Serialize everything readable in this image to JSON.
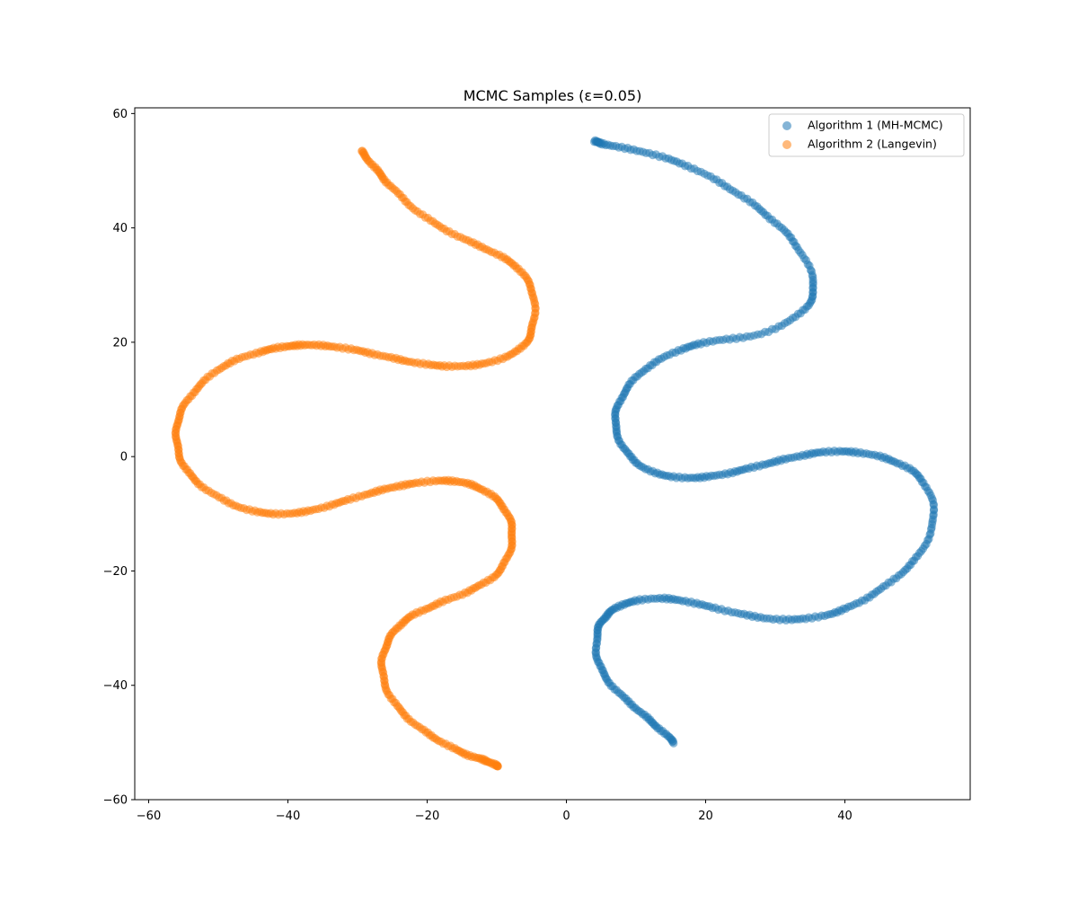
{
  "chart_data": {
    "type": "scatter",
    "title": "MCMC Samples (ε=0.05)",
    "xlabel": "",
    "ylabel": "",
    "xlim": [
      -62,
      58
    ],
    "ylim": [
      -60,
      61
    ],
    "xticks": [
      -60,
      -40,
      -20,
      0,
      20,
      40
    ],
    "yticks": [
      -60,
      -40,
      -20,
      0,
      20,
      40,
      60
    ],
    "xtick_labels": [
      "−60",
      "−40",
      "−20",
      "0",
      "20",
      "40"
    ],
    "ytick_labels": [
      "−60",
      "−40",
      "−20",
      "0",
      "20",
      "40",
      "60"
    ],
    "grid": false,
    "legend_position": "top-right",
    "series": [
      {
        "name": "Algorithm 1 (MH-MCMC)",
        "color": "#1f77b4",
        "path_points": [
          [
            4.0,
            55.2
          ],
          [
            6.0,
            54.5
          ],
          [
            12.0,
            53.0
          ],
          [
            18.0,
            50.5
          ],
          [
            24.0,
            46.5
          ],
          [
            29.0,
            42.0
          ],
          [
            33.0,
            37.0
          ],
          [
            35.5,
            30.5
          ],
          [
            34.0,
            25.5
          ],
          [
            28.0,
            21.5
          ],
          [
            21.0,
            20.2
          ],
          [
            16.0,
            18.5
          ],
          [
            11.0,
            15.0
          ],
          [
            8.0,
            10.5
          ],
          [
            7.0,
            5.8
          ],
          [
            8.5,
            1.0
          ],
          [
            12.0,
            -2.5
          ],
          [
            17.0,
            -3.7
          ],
          [
            22.0,
            -3.2
          ],
          [
            27.0,
            -1.8
          ],
          [
            32.0,
            -0.3
          ],
          [
            37.0,
            0.8
          ],
          [
            42.0,
            0.7
          ],
          [
            47.0,
            -0.8
          ],
          [
            51.0,
            -4.0
          ],
          [
            52.8,
            -10.0
          ],
          [
            51.0,
            -16.5
          ],
          [
            47.0,
            -21.5
          ],
          [
            42.0,
            -25.5
          ],
          [
            37.0,
            -27.8
          ],
          [
            31.0,
            -28.5
          ],
          [
            25.0,
            -27.5
          ],
          [
            19.0,
            -25.8
          ],
          [
            14.0,
            -24.8
          ],
          [
            9.0,
            -25.5
          ],
          [
            6.0,
            -27.5
          ],
          [
            4.5,
            -30.5
          ],
          [
            4.5,
            -35.5
          ],
          [
            6.5,
            -40.0
          ],
          [
            10.0,
            -44.0
          ],
          [
            13.0,
            -47.2
          ],
          [
            15.5,
            -50.0
          ]
        ]
      },
      {
        "name": "Algorithm 2 (Langevin)",
        "color": "#ff7f0e",
        "path_points": [
          [
            -29.5,
            53.5
          ],
          [
            -27.5,
            50.5
          ],
          [
            -25.0,
            47.0
          ],
          [
            -21.0,
            42.5
          ],
          [
            -16.0,
            38.8
          ],
          [
            -11.0,
            36.0
          ],
          [
            -7.0,
            33.0
          ],
          [
            -4.8,
            28.5
          ],
          [
            -4.8,
            23.0
          ],
          [
            -6.5,
            19.0
          ],
          [
            -11.0,
            16.5
          ],
          [
            -16.0,
            15.8
          ],
          [
            -21.0,
            16.3
          ],
          [
            -26.0,
            17.5
          ],
          [
            -31.0,
            18.8
          ],
          [
            -36.0,
            19.5
          ],
          [
            -40.0,
            19.3
          ],
          [
            -44.0,
            18.3
          ],
          [
            -49.0,
            16.0
          ],
          [
            -53.0,
            12.0
          ],
          [
            -55.5,
            7.5
          ],
          [
            -56.0,
            3.0
          ],
          [
            -55.0,
            -1.5
          ],
          [
            -52.0,
            -5.5
          ],
          [
            -47.0,
            -8.8
          ],
          [
            -42.0,
            -10.0
          ],
          [
            -37.0,
            -9.5
          ],
          [
            -32.0,
            -7.8
          ],
          [
            -27.0,
            -6.0
          ],
          [
            -22.5,
            -4.8
          ],
          [
            -17.5,
            -4.2
          ],
          [
            -13.5,
            -5.0
          ],
          [
            -10.0,
            -7.5
          ],
          [
            -8.0,
            -11.5
          ],
          [
            -8.0,
            -16.0
          ],
          [
            -10.0,
            -20.5
          ],
          [
            -14.0,
            -23.5
          ],
          [
            -19.0,
            -26.0
          ],
          [
            -23.0,
            -28.5
          ],
          [
            -25.5,
            -32.0
          ],
          [
            -26.5,
            -36.5
          ],
          [
            -25.5,
            -41.5
          ],
          [
            -22.5,
            -46.0
          ],
          [
            -18.5,
            -49.5
          ],
          [
            -14.5,
            -52.0
          ],
          [
            -11.5,
            -53.2
          ],
          [
            -9.8,
            -54.2
          ]
        ]
      }
    ]
  }
}
